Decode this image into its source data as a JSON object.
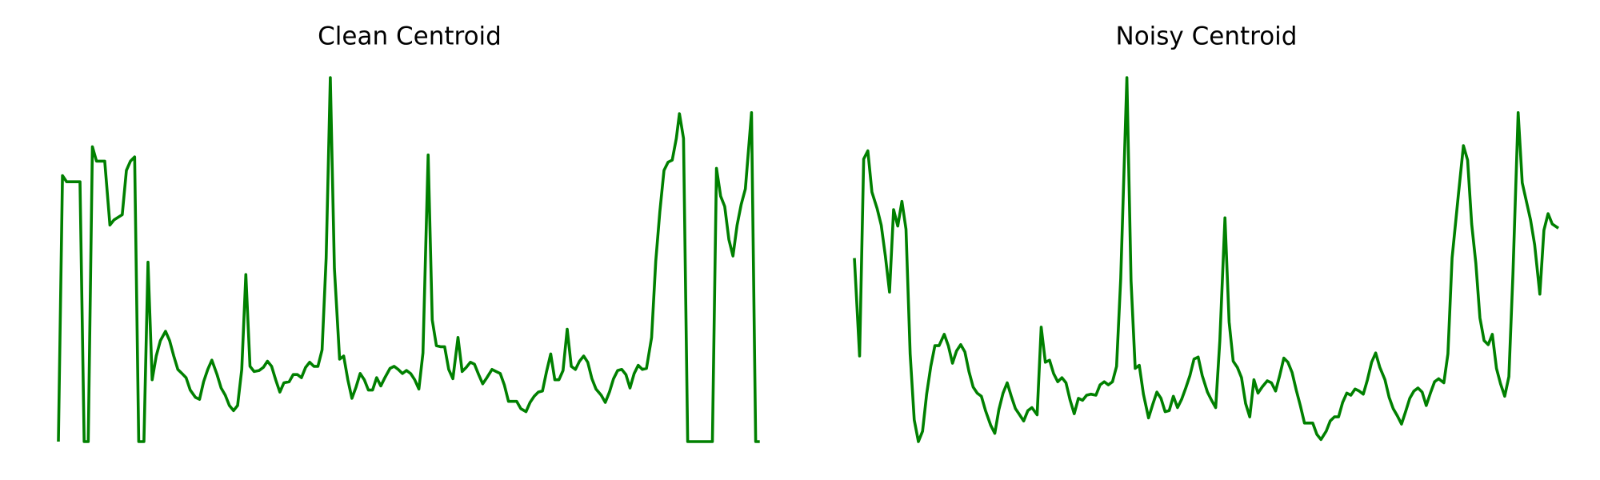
{
  "chart_data": [
    {
      "type": "line",
      "title": "Clean Centroid",
      "color": "#008000",
      "xlim": [
        0,
        682
      ],
      "ylim": [
        0,
        353
      ],
      "x": [
        0,
        4,
        8,
        21,
        25,
        29,
        33,
        37,
        45,
        50,
        54,
        62,
        66,
        70,
        74,
        78,
        83,
        87,
        91,
        95,
        99,
        104,
        108,
        112,
        116,
        120,
        124,
        128,
        133,
        137,
        141,
        145,
        149,
        154,
        158,
        162,
        166,
        170,
        174,
        178,
        182,
        186,
        190,
        195,
        199,
        203,
        207,
        211,
        215,
        219,
        224,
        228,
        232,
        236,
        240,
        244,
        248,
        252,
        256,
        260,
        264,
        268,
        273,
        277,
        281,
        285,
        289,
        293,
        297,
        301,
        305,
        309,
        313,
        317,
        322,
        326,
        330,
        334,
        338,
        342,
        346,
        350,
        354,
        359,
        363,
        367,
        371,
        375,
        379,
        383,
        388,
        392,
        396,
        400,
        404,
        408,
        412,
        416,
        421,
        425,
        429,
        433,
        437,
        441,
        445,
        449,
        454,
        458,
        462,
        466,
        470,
        474,
        478,
        482,
        486,
        490,
        494,
        498,
        502,
        506,
        510,
        514,
        518,
        522,
        527,
        531,
        535,
        539,
        543,
        547,
        551,
        555,
        559,
        563,
        567,
        571,
        576,
        580,
        584,
        588,
        592,
        596,
        600,
        603,
        607,
        611,
        635,
        639,
        643,
        647,
        651,
        655,
        659,
        663,
        667,
        673,
        677,
        681
      ],
      "values": [
        0,
        258,
        252,
        252,
        0,
        0,
        286,
        272,
        272,
        210,
        215,
        220,
        263,
        272,
        276,
        0,
        0,
        174,
        60,
        83,
        98,
        107,
        98,
        83,
        70,
        66,
        62,
        50,
        43,
        41,
        58,
        70,
        79,
        65,
        52,
        45,
        35,
        30,
        35,
        70,
        162,
        73,
        68,
        69,
        72,
        78,
        73,
        60,
        48,
        57,
        58,
        65,
        65,
        62,
        72,
        77,
        73,
        73,
        89,
        178,
        353,
        168,
        80,
        83,
        60,
        42,
        53,
        66,
        60,
        50,
        50,
        62,
        54,
        62,
        71,
        73,
        70,
        66,
        69,
        66,
        60,
        51,
        86,
        278,
        118,
        93,
        92,
        92,
        70,
        61,
        101,
        68,
        72,
        77,
        75,
        65,
        56,
        62,
        70,
        68,
        66,
        55,
        39,
        39,
        39,
        32,
        29,
        38,
        44,
        48,
        49,
        68,
        85,
        60,
        60,
        69,
        109,
        73,
        70,
        78,
        83,
        77,
        61,
        51,
        45,
        38,
        48,
        61,
        69,
        70,
        65,
        52,
        66,
        74,
        70,
        71,
        101,
        175,
        223,
        263,
        271,
        273,
        294,
        318,
        294,
        0,
        0,
        265,
        238,
        228,
        196,
        180,
        210,
        230,
        245,
        319,
        0,
        0
      ]
    },
    {
      "type": "line",
      "title": "Noisy Centroid",
      "color": "#008000",
      "xlim": [
        0,
        682
      ],
      "ylim": [
        0,
        353
      ],
      "x": [
        0,
        5,
        9,
        13,
        17,
        22,
        26,
        30,
        34,
        38,
        42,
        46,
        50,
        54,
        58,
        62,
        66,
        70,
        74,
        78,
        82,
        87,
        91,
        95,
        99,
        103,
        107,
        111,
        115,
        119,
        123,
        127,
        132,
        136,
        140,
        144,
        148,
        152,
        156,
        160,
        164,
        168,
        172,
        177,
        181,
        185,
        189,
        193,
        197,
        201,
        205,
        209,
        213,
        217,
        221,
        225,
        229,
        234,
        238,
        242,
        246,
        250,
        254,
        258,
        264,
        268,
        272,
        276,
        280,
        285,
        289,
        293,
        297,
        301,
        305,
        309,
        313,
        317,
        321,
        325,
        329,
        333,
        337,
        342,
        346,
        350,
        354,
        359,
        363,
        367,
        371,
        375,
        379,
        383,
        387,
        391,
        395,
        400,
        404,
        408,
        412,
        416,
        420,
        424,
        428,
        432,
        436,
        440,
        444,
        448,
        452,
        457,
        461,
        465,
        469,
        473,
        477,
        481,
        485,
        489,
        493,
        497,
        501,
        505,
        509,
        514,
        518,
        522,
        526,
        530,
        534,
        538,
        542,
        546,
        550,
        554,
        558,
        562,
        566,
        571,
        575,
        579,
        585,
        590,
        594,
        598,
        602,
        606,
        610,
        614,
        618,
        622,
        626,
        630,
        634,
        638,
        643,
        647,
        651,
        655,
        659,
        664,
        668,
        672,
        676,
        682
      ],
      "values": [
        178,
        83,
        274,
        282,
        242,
        226,
        210,
        180,
        145,
        225,
        209,
        233,
        206,
        85,
        21,
        0,
        10,
        46,
        73,
        93,
        93,
        104,
        93,
        76,
        88,
        94,
        87,
        68,
        53,
        47,
        44,
        30,
        16,
        8,
        31,
        47,
        57,
        44,
        32,
        26,
        20,
        30,
        33,
        26,
        111,
        77,
        79,
        66,
        58,
        62,
        57,
        40,
        27,
        42,
        40,
        45,
        46,
        45,
        55,
        58,
        55,
        58,
        73,
        158,
        353,
        156,
        71,
        74,
        46,
        23,
        36,
        48,
        42,
        29,
        30,
        44,
        33,
        41,
        52,
        64,
        80,
        82,
        64,
        48,
        40,
        33,
        98,
        217,
        116,
        78,
        72,
        62,
        37,
        24,
        60,
        47,
        53,
        59,
        57,
        49,
        64,
        81,
        77,
        67,
        50,
        35,
        18,
        18,
        18,
        7,
        2,
        10,
        20,
        24,
        24,
        38,
        47,
        45,
        51,
        49,
        46,
        60,
        77,
        86,
        72,
        60,
        43,
        32,
        25,
        17,
        29,
        42,
        49,
        52,
        48,
        35,
        47,
        58,
        61,
        57,
        85,
        178,
        238,
        287,
        273,
        211,
        173,
        120,
        98,
        94,
        104,
        71,
        56,
        44,
        63,
        163,
        319,
        251,
        233,
        215,
        191,
        143,
        205,
        221,
        211,
        207
      ]
    }
  ]
}
